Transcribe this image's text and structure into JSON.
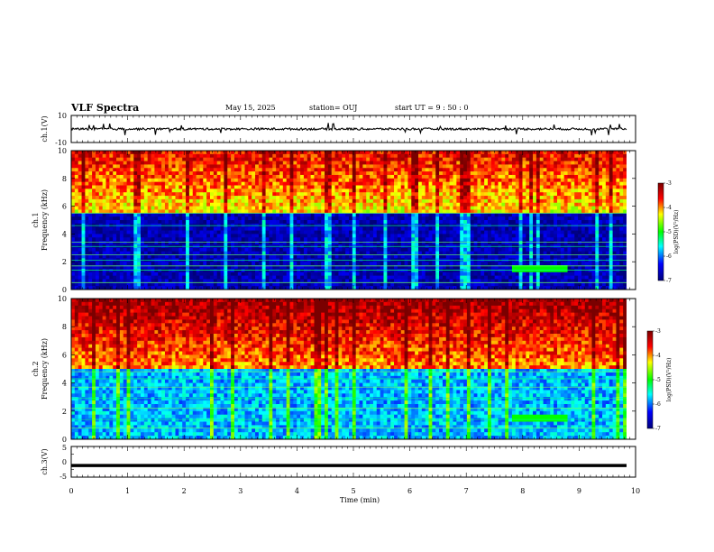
{
  "header": {
    "title": "VLF Spectra",
    "date": "May 15, 2025",
    "station": "station= OUJ",
    "start_ut": "start  UT =  9 : 50 : 0"
  },
  "colors": {
    "dark_blue": "#00007a",
    "blue": "#0000ff",
    "cyan": "#00ffff",
    "green": "#00ff00",
    "yellow": "#ffff00",
    "red": "#ff0000",
    "dark_red": "#7a0000"
  },
  "chart_data": [
    {
      "type": "line",
      "panel": "ch1_waveform",
      "ylabel": "ch.1(V)",
      "ylim": [
        -10,
        10
      ],
      "y_ticks": [
        "10",
        "-10"
      ],
      "approx_level_v": 0,
      "x": [
        0,
        10
      ],
      "y": [
        0,
        0
      ]
    },
    {
      "type": "heatmap",
      "panel": "ch1_spectrogram",
      "ylabel": "ch.1\nFrequency (kHz)",
      "ylim": [
        0,
        10
      ],
      "y_ticks": [
        "0",
        "2",
        "4",
        "6",
        "8",
        "10"
      ],
      "colorbar": {
        "label": "log(PSD)(V²/Hz)",
        "range": [
          -7,
          -3
        ],
        "ticks": [
          "-3",
          "-4",
          "-5",
          "-6",
          "-7"
        ]
      },
      "features": {
        "noise_floor_khz": 5.5,
        "above_floor_log_psd": -4.3,
        "below_floor_log_psd": -6.7,
        "horizontal_lines_khz": [
          0.5,
          1.4,
          1.7,
          2.1,
          2.5,
          3.1,
          3.4,
          4.6,
          5.5
        ],
        "enhanced_band": {
          "t_start_min": 7.8,
          "t_end_min": 8.8,
          "f_khz": 1.6
        }
      }
    },
    {
      "type": "heatmap",
      "panel": "ch2_spectrogram",
      "ylabel": "ch.2\nFrequency (kHz)",
      "ylim": [
        0,
        10
      ],
      "y_ticks": [
        "0",
        "2",
        "4",
        "6",
        "8",
        "10"
      ],
      "colorbar": {
        "label": "log(PSD)(V²/Hz)",
        "range": [
          -7,
          -3
        ],
        "ticks": [
          "-3",
          "-4",
          "-5",
          "-6",
          "-7"
        ]
      },
      "features": {
        "noise_floor_khz": 5.0,
        "above_floor_log_psd": -4.0,
        "below_floor_log_psd": -5.8,
        "horizontal_lines_khz": [
          0.8,
          1.4,
          2.2,
          2.9,
          3.7,
          4.3,
          4.8
        ],
        "enhanced_band": {
          "t_start_min": 7.8,
          "t_end_min": 8.8,
          "f_khz": 1.5
        }
      }
    },
    {
      "type": "line",
      "panel": "ch3_waveform",
      "ylabel": "ch.3(V)",
      "ylim": [
        -5,
        5
      ],
      "y_ticks": [
        "5",
        "0",
        "-5"
      ],
      "x": [
        0,
        10
      ],
      "y": [
        -1.2,
        -1.2
      ]
    }
  ],
  "x_axis": {
    "label": "Time  (min)",
    "range": [
      0,
      10
    ],
    "ticks": [
      "0",
      "1",
      "2",
      "3",
      "4",
      "5",
      "6",
      "7",
      "8",
      "9",
      "10"
    ],
    "data_end_min": 9.84
  }
}
